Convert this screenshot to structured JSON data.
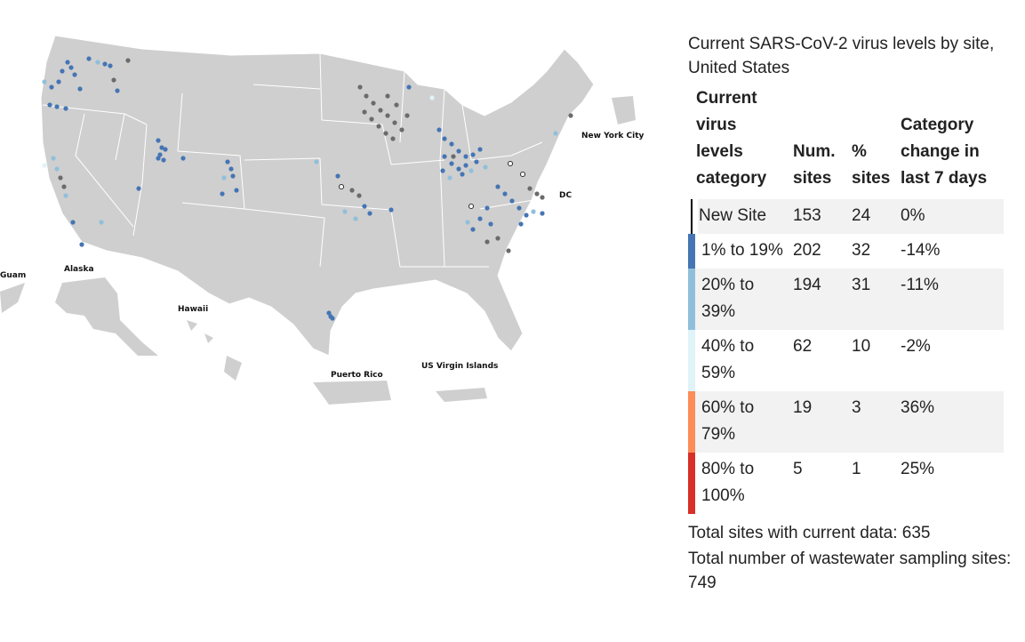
{
  "title": "Current SARS-CoV-2 virus levels by site, United States",
  "table": {
    "headers": {
      "category": "Current virus levels category",
      "num_sites": "Num. sites",
      "pct_sites": "% sites",
      "change": "Category change in last 7 days"
    },
    "rows": [
      {
        "category": "New Site",
        "num_sites": "153",
        "pct_sites": "24",
        "change": "0%",
        "color": "#ffffff"
      },
      {
        "category": "1% to 19%",
        "num_sites": "202",
        "pct_sites": "32",
        "change": "-14%",
        "color": "#4575b4"
      },
      {
        "category": "20% to 39%",
        "num_sites": "194",
        "pct_sites": "31",
        "change": "-11%",
        "color": "#91bfdb"
      },
      {
        "category": "40% to 59%",
        "num_sites": "62",
        "pct_sites": "10",
        "change": "-2%",
        "color": "#e0f3f8"
      },
      {
        "category": "60% to 79%",
        "num_sites": "19",
        "pct_sites": "3",
        "change": "36%",
        "color": "#fc8d59"
      },
      {
        "category": "80% to 100%",
        "num_sites": "5",
        "pct_sites": "1",
        "change": "25%",
        "color": "#d73027"
      }
    ]
  },
  "totals": {
    "current": "Total sites with current data: 635",
    "sampling": "Total number of wastewater sampling sites: 749"
  },
  "map_labels": {
    "guam": "Guam",
    "alaska": "Alaska",
    "hawaii": "Hawaii",
    "puerto_rico": "Puerto Rico",
    "usvi": "US Virgin Islands",
    "nyc": "New York City",
    "dc": "DC"
  },
  "colors": {
    "land": "#cfcfcf",
    "border": "#ffffff",
    "no_recent_data": "#6b6b6b"
  }
}
